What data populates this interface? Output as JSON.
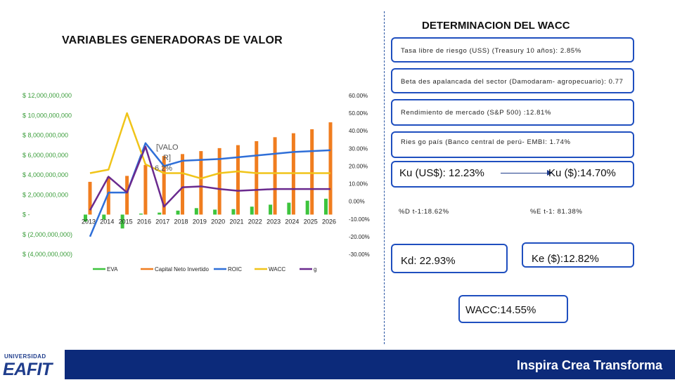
{
  "left_title": "VARIABLES GENERADORAS DE VALOR",
  "right_title": "DETERMINACION DEL WACC",
  "boxes": {
    "tasa": "Tasa libre de riesgo (USS) (Treasury 10 años): 2.85%",
    "beta": "Beta des apalancada del sector (Damodaram- agropecuario): 0.77",
    "rendimiento": "Rendimiento de mercado (S&P 500) :12.81%",
    "riesgo": "Ries go país (Banco central de perú- EMBI: 1.74%",
    "ku_usd": "Ku (US$): 12.23%",
    "ku_cop": "Ku ($):14.70%",
    "kd": "Kd: 22.93%",
    "ke": "Ke ($):12.82%",
    "wacc": "WACC:14.55%"
  },
  "weights": {
    "debt": "%D t-1:18.62%",
    "equity": "%E t-1: 81.38%"
  },
  "footer": {
    "slogan": "Inspira Crea Transforma",
    "logo_top": "UNIVERSIDAD",
    "logo_main": "EAFIT"
  },
  "colors": {
    "eva": "#3dc43d",
    "capital": "#f07d1f",
    "roic": "#2f6fd8",
    "wacc": "#f0c419",
    "g": "#6a2a8e"
  },
  "chart_data": {
    "type": "bar",
    "title": "",
    "categories": [
      "2013",
      "2014",
      "2015",
      "2016",
      "2017",
      "2018",
      "2019",
      "2020",
      "2021",
      "2022",
      "2023",
      "2024",
      "2025",
      "2026"
    ],
    "left_axis_ticks": [
      "$ 12,000,000,000",
      "$ 10,000,000,000",
      "$ 8,000,000,000",
      "$ 6,000,000,000",
      "$ 4,000,000,000",
      "$ 2,000,000,000",
      "$ -",
      "$ (2,000,000,000)",
      "$ (4,000,000,000)"
    ],
    "right_axis_ticks": [
      "60.00%",
      "50.00%",
      "40.00%",
      "30.00%",
      "20.00%",
      "10.00%",
      "0.00%",
      "-10.00%",
      "-20.00%",
      "-30.00%"
    ],
    "ylim_left": [
      -4000000000,
      12000000000
    ],
    "ylim_right": [
      -0.3,
      0.6
    ],
    "series": [
      {
        "name": "EVA",
        "axis": "left",
        "kind": "bar",
        "values": [
          -700000000,
          -500000000,
          -1400000000,
          100000000,
          200000000,
          400000000,
          650000000,
          500000000,
          550000000,
          800000000,
          1000000000,
          1200000000,
          1400000000,
          1600000000
        ]
      },
      {
        "name": "Capital Neto Invertido",
        "axis": "left",
        "kind": "bar",
        "values": [
          3300000000,
          3800000000,
          3900000000,
          5000000000,
          5900000000,
          6100000000,
          6400000000,
          6700000000,
          7000000000,
          7400000000,
          7800000000,
          8200000000,
          8600000000,
          9300000000
        ]
      },
      {
        "name": "ROIC",
        "axis": "right",
        "kind": "line",
        "values": [
          -0.2,
          0.05,
          0.05,
          0.33,
          0.2,
          0.23,
          0.235,
          0.24,
          0.25,
          0.26,
          0.27,
          0.28,
          0.285,
          0.29
        ]
      },
      {
        "name": "WACC",
        "axis": "right",
        "kind": "line",
        "values": [
          0.16,
          0.18,
          0.5,
          0.21,
          0.16,
          0.16,
          0.13,
          0.16,
          0.17,
          0.16,
          0.16,
          0.16,
          0.16,
          0.16
        ]
      },
      {
        "name": "g",
        "axis": "right",
        "kind": "line",
        "values": [
          -0.05,
          0.14,
          0.05,
          0.31,
          -0.03,
          0.08,
          0.085,
          0.07,
          0.06,
          0.065,
          0.07,
          0.07,
          0.07,
          0.07
        ]
      }
    ],
    "data_label_line1": "[VALO",
    "data_label_line2": "R]",
    "data_label_line3": "6.2%",
    "legend": [
      "EVA",
      "Capital Neto Invertido",
      "ROIC",
      "WACC",
      "g"
    ]
  }
}
